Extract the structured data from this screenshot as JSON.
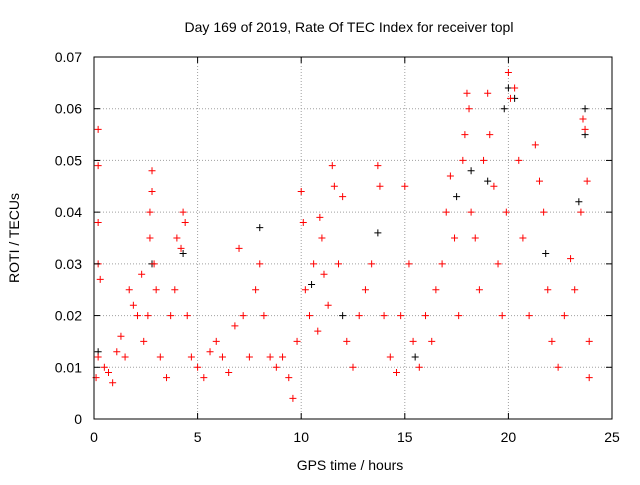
{
  "chart_data": {
    "type": "scatter",
    "title": "Day 169 of 2019, Rate Of TEC Index for receiver topl",
    "xlabel": "GPS time / hours",
    "ylabel": "ROTI / TECUs",
    "xlim": [
      0,
      25
    ],
    "ylim": [
      0,
      0.07
    ],
    "grid": true,
    "x_ticks": [
      "0",
      "5",
      "10",
      "15",
      "20",
      "25"
    ],
    "y_ticks": [
      "0",
      "0.01",
      "0.02",
      "0.03",
      "0.04",
      "0.05",
      "0.06",
      "0.07"
    ],
    "marker": "plus",
    "series": [
      {
        "name": "ROTI (red)",
        "color": "#ff0000",
        "points": [
          [
            0.1,
            0.008
          ],
          [
            0.2,
            0.012
          ],
          [
            0.2,
            0.056
          ],
          [
            0.2,
            0.049
          ],
          [
            0.2,
            0.038
          ],
          [
            0.2,
            0.03
          ],
          [
            0.3,
            0.027
          ],
          [
            0.5,
            0.01
          ],
          [
            0.7,
            0.009
          ],
          [
            0.9,
            0.007
          ],
          [
            1.1,
            0.013
          ],
          [
            1.3,
            0.016
          ],
          [
            1.5,
            0.012
          ],
          [
            1.7,
            0.025
          ],
          [
            1.9,
            0.022
          ],
          [
            2.1,
            0.02
          ],
          [
            2.3,
            0.028
          ],
          [
            2.4,
            0.015
          ],
          [
            2.6,
            0.02
          ],
          [
            2.7,
            0.035
          ],
          [
            2.7,
            0.04
          ],
          [
            2.8,
            0.048
          ],
          [
            2.8,
            0.044
          ],
          [
            2.9,
            0.03
          ],
          [
            3.0,
            0.025
          ],
          [
            3.2,
            0.012
          ],
          [
            3.5,
            0.008
          ],
          [
            3.7,
            0.02
          ],
          [
            3.9,
            0.025
          ],
          [
            4.0,
            0.035
          ],
          [
            4.2,
            0.033
          ],
          [
            4.3,
            0.04
          ],
          [
            4.4,
            0.038
          ],
          [
            4.5,
            0.02
          ],
          [
            4.7,
            0.012
          ],
          [
            5.0,
            0.01
          ],
          [
            5.3,
            0.008
          ],
          [
            5.6,
            0.013
          ],
          [
            5.9,
            0.015
          ],
          [
            6.2,
            0.012
          ],
          [
            6.5,
            0.009
          ],
          [
            6.8,
            0.018
          ],
          [
            7.0,
            0.033
          ],
          [
            7.2,
            0.02
          ],
          [
            7.5,
            0.012
          ],
          [
            7.8,
            0.025
          ],
          [
            8.0,
            0.03
          ],
          [
            8.2,
            0.02
          ],
          [
            8.5,
            0.012
          ],
          [
            8.8,
            0.01
          ],
          [
            9.1,
            0.012
          ],
          [
            9.4,
            0.008
          ],
          [
            9.6,
            0.004
          ],
          [
            9.8,
            0.015
          ],
          [
            10.0,
            0.044
          ],
          [
            10.1,
            0.038
          ],
          [
            10.2,
            0.025
          ],
          [
            10.4,
            0.02
          ],
          [
            10.6,
            0.03
          ],
          [
            10.8,
            0.017
          ],
          [
            10.9,
            0.039
          ],
          [
            11.0,
            0.035
          ],
          [
            11.1,
            0.028
          ],
          [
            11.3,
            0.022
          ],
          [
            11.5,
            0.049
          ],
          [
            11.6,
            0.045
          ],
          [
            11.8,
            0.03
          ],
          [
            12.0,
            0.043
          ],
          [
            12.2,
            0.015
          ],
          [
            12.5,
            0.01
          ],
          [
            12.8,
            0.02
          ],
          [
            13.1,
            0.025
          ],
          [
            13.4,
            0.03
          ],
          [
            13.7,
            0.049
          ],
          [
            13.8,
            0.045
          ],
          [
            14.0,
            0.02
          ],
          [
            14.3,
            0.012
          ],
          [
            14.6,
            0.009
          ],
          [
            14.8,
            0.02
          ],
          [
            15.0,
            0.045
          ],
          [
            15.2,
            0.03
          ],
          [
            15.4,
            0.015
          ],
          [
            15.7,
            0.01
          ],
          [
            16.0,
            0.02
          ],
          [
            16.3,
            0.015
          ],
          [
            16.5,
            0.025
          ],
          [
            16.8,
            0.03
          ],
          [
            17.0,
            0.04
          ],
          [
            17.2,
            0.047
          ],
          [
            17.4,
            0.035
          ],
          [
            17.6,
            0.02
          ],
          [
            17.8,
            0.05
          ],
          [
            17.9,
            0.055
          ],
          [
            18.0,
            0.063
          ],
          [
            18.1,
            0.06
          ],
          [
            18.2,
            0.04
          ],
          [
            18.4,
            0.035
          ],
          [
            18.6,
            0.025
          ],
          [
            18.8,
            0.05
          ],
          [
            19.0,
            0.063
          ],
          [
            19.1,
            0.055
          ],
          [
            19.3,
            0.045
          ],
          [
            19.5,
            0.03
          ],
          [
            19.7,
            0.02
          ],
          [
            19.9,
            0.04
          ],
          [
            20.0,
            0.067
          ],
          [
            20.1,
            0.062
          ],
          [
            20.3,
            0.064
          ],
          [
            20.5,
            0.05
          ],
          [
            20.7,
            0.035
          ],
          [
            21.0,
            0.02
          ],
          [
            21.3,
            0.053
          ],
          [
            21.5,
            0.046
          ],
          [
            21.7,
            0.04
          ],
          [
            21.9,
            0.025
          ],
          [
            22.1,
            0.015
          ],
          [
            22.4,
            0.01
          ],
          [
            22.7,
            0.02
          ],
          [
            23.0,
            0.031
          ],
          [
            23.2,
            0.025
          ],
          [
            23.5,
            0.04
          ],
          [
            23.6,
            0.058
          ],
          [
            23.7,
            0.056
          ],
          [
            23.8,
            0.046
          ],
          [
            23.9,
            0.015
          ],
          [
            23.9,
            0.008
          ]
        ]
      },
      {
        "name": "ROTI (black)",
        "color": "#000000",
        "points": [
          [
            0.2,
            0.013
          ],
          [
            2.8,
            0.03
          ],
          [
            4.3,
            0.032
          ],
          [
            8.0,
            0.037
          ],
          [
            10.5,
            0.026
          ],
          [
            12.0,
            0.02
          ],
          [
            13.7,
            0.036
          ],
          [
            15.5,
            0.012
          ],
          [
            17.5,
            0.043
          ],
          [
            18.2,
            0.048
          ],
          [
            19.0,
            0.046
          ],
          [
            19.8,
            0.06
          ],
          [
            20.0,
            0.064
          ],
          [
            20.3,
            0.062
          ],
          [
            21.8,
            0.032
          ],
          [
            23.4,
            0.042
          ],
          [
            23.7,
            0.06
          ],
          [
            23.7,
            0.055
          ]
        ]
      }
    ]
  }
}
